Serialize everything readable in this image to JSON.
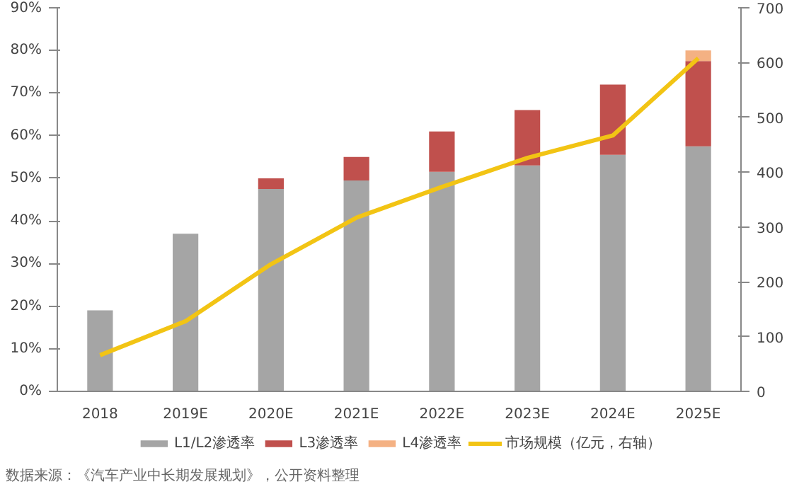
{
  "chart_data": {
    "type": "bar",
    "stacked": true,
    "categories": [
      "2018",
      "2019E",
      "2020E",
      "2021E",
      "2022E",
      "2023E",
      "2024E",
      "2025E"
    ],
    "series": [
      {
        "name": "L1/L2渗透率",
        "color": "#a5a5a5",
        "values": [
          19,
          37,
          47.5,
          49.5,
          51.5,
          53,
          55.5,
          57.5
        ]
      },
      {
        "name": "L3渗透率",
        "color": "#c0504d",
        "values": [
          null,
          null,
          2.5,
          5.5,
          9.5,
          13,
          16.5,
          20
        ]
      },
      {
        "name": "L4渗透率",
        "color": "#f4b183",
        "values": [
          null,
          null,
          null,
          null,
          null,
          null,
          null,
          2.5
        ]
      },
      {
        "name": "市场规模（亿元，右轴）",
        "type": "line",
        "axis": "y2",
        "color": "#f2c414",
        "values": [
          66,
          128,
          232,
          317,
          373,
          426,
          467,
          608
        ]
      }
    ],
    "ylim": [
      0,
      90
    ],
    "yticks": [
      {
        "value": 0,
        "label": "0%"
      },
      {
        "value": 10,
        "label": "10%"
      },
      {
        "value": 20,
        "label": "20%"
      },
      {
        "value": 30,
        "label": "30%"
      },
      {
        "value": 40,
        "label": "40%"
      },
      {
        "value": 50,
        "label": "50%"
      },
      {
        "value": 60,
        "label": "60%"
      },
      {
        "value": 70,
        "label": "70%"
      },
      {
        "value": 80,
        "label": "80%"
      },
      {
        "value": 90,
        "label": "90%"
      }
    ],
    "y2lim": [
      0,
      700
    ],
    "y2ticks": [
      0,
      100,
      200,
      300,
      400,
      500,
      600,
      700
    ],
    "legend": "bottom",
    "grid": false,
    "annotations": [
      "数据来源：《汽车产业中长期发展规划》，公开资料整理"
    ]
  }
}
